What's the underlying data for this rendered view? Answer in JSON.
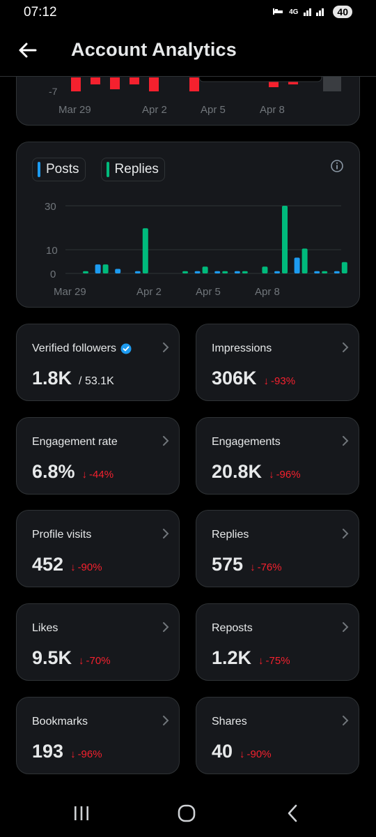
{
  "status": {
    "time": "07:12",
    "network": "4G",
    "battery": "40"
  },
  "header": {
    "title": "Account Analytics"
  },
  "top_chart": {
    "y_tick": "-7",
    "x_ticks": [
      "Mar 29",
      "Apr 2",
      "Apr 5",
      "Apr 8"
    ]
  },
  "activity_chart": {
    "legend": [
      {
        "label": "Posts",
        "color": "#1d9bf0"
      },
      {
        "label": "Replies",
        "color": "#00ba7c"
      }
    ]
  },
  "chart_data": {
    "type": "bar",
    "categories": [
      "Mar 29",
      "Mar 30",
      "Mar 31",
      "Apr 1",
      "Apr 2",
      "Apr 3",
      "Apr 4",
      "Apr 5",
      "Apr 6",
      "Apr 7",
      "Apr 8",
      "Apr 9",
      "Apr 10",
      "Apr 11"
    ],
    "x_tick_labels": [
      "Mar 29",
      "Apr 2",
      "Apr 5",
      "Apr 8"
    ],
    "y_ticks": [
      "30",
      "10",
      "0"
    ],
    "ylim": [
      0,
      32
    ],
    "grid": true,
    "series": [
      {
        "name": "Posts",
        "color": "#1d9bf0",
        "values": [
          0,
          4,
          2,
          1,
          0,
          0,
          1,
          1,
          1,
          0,
          1,
          7,
          1,
          1
        ]
      },
      {
        "name": "Replies",
        "color": "#00ba7c",
        "values": [
          1,
          4,
          0,
          20,
          0,
          1,
          3,
          1,
          1,
          3,
          30,
          11,
          1,
          5
        ]
      }
    ]
  },
  "metrics": [
    {
      "label": "Verified followers",
      "value": "1.8K",
      "sub": "/ 53.1K",
      "change": "",
      "verified": true
    },
    {
      "label": "Impressions",
      "value": "306K",
      "sub": "",
      "change": "-93%"
    },
    {
      "label": "Engagement rate",
      "value": "6.8%",
      "sub": "",
      "change": "-44%"
    },
    {
      "label": "Engagements",
      "value": "20.8K",
      "sub": "",
      "change": "-96%"
    },
    {
      "label": "Profile visits",
      "value": "452",
      "sub": "",
      "change": "-90%"
    },
    {
      "label": "Replies",
      "value": "575",
      "sub": "",
      "change": "-76%"
    },
    {
      "label": "Likes",
      "value": "9.5K",
      "sub": "",
      "change": "-70%"
    },
    {
      "label": "Reposts",
      "value": "1.2K",
      "sub": "",
      "change": "-75%"
    },
    {
      "label": "Bookmarks",
      "value": "193",
      "sub": "",
      "change": "-96%"
    },
    {
      "label": "Shares",
      "value": "40",
      "sub": "",
      "change": "-90%"
    }
  ],
  "colors": {
    "accent": "#1d9bf0",
    "positive": "#00ba7c",
    "negative": "#f4212e",
    "card_bg": "#16181c",
    "border": "#2f3336"
  },
  "icons": [
    "back-arrow-icon",
    "info-icon",
    "chevron-right-icon",
    "verified-badge-icon",
    "down-arrow-icon",
    "recents-icon",
    "home-icon",
    "back-nav-icon"
  ]
}
